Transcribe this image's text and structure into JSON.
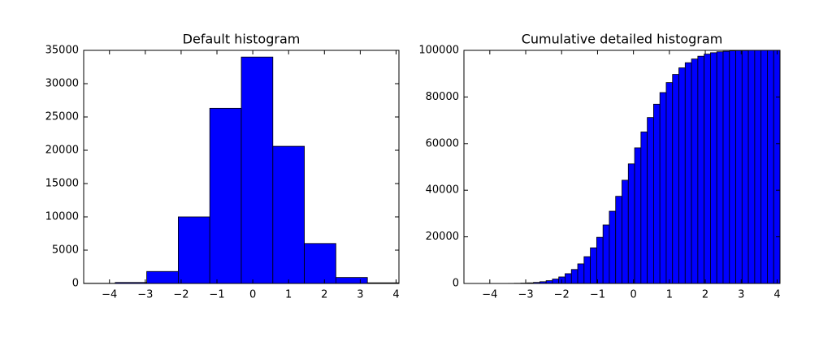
{
  "chart_data": [
    {
      "type": "histogram",
      "title": "Default histogram",
      "bins": [
        -4.72,
        -3.84,
        -2.96,
        -2.08,
        -1.2,
        -0.32,
        0.56,
        1.44,
        2.32,
        3.2,
        4.08
      ],
      "values": [
        30,
        150,
        1800,
        10000,
        26300,
        34000,
        20600,
        6000,
        900,
        100
      ],
      "color": "#0000ff",
      "xlim": [
        -4.72,
        4.08
      ],
      "xticks": [
        {
          "value": -4,
          "label": "−4"
        },
        {
          "value": -3,
          "label": "−3"
        },
        {
          "value": -2,
          "label": "−2"
        },
        {
          "value": -1,
          "label": "−1"
        },
        0,
        1,
        2,
        3,
        4
      ],
      "ylim": [
        0,
        35000
      ],
      "yticks": [
        0,
        5000,
        10000,
        15000,
        20000,
        25000,
        30000,
        35000
      ]
    },
    {
      "type": "histogram",
      "title": "Cumulative detailed histogram",
      "bins": [
        -4.72,
        -4.544,
        -4.368,
        -4.192,
        -4.016,
        -3.84,
        -3.664,
        -3.488,
        -3.312,
        -3.136,
        -2.96,
        -2.784,
        -2.608,
        -2.432,
        -2.256,
        -2.08,
        -1.904,
        -1.728,
        -1.552,
        -1.376,
        -1.2,
        -1.024,
        -0.848,
        -0.672,
        -0.496,
        -0.32,
        -0.144,
        0.032,
        0.208,
        0.384,
        0.56,
        0.736,
        0.912,
        1.088,
        1.264,
        1.44,
        1.616,
        1.792,
        1.968,
        2.144,
        2.32,
        2.496,
        2.672,
        2.848,
        3.024,
        3.2,
        3.376,
        3.552,
        3.728,
        3.904,
        4.08
      ],
      "values": [
        0,
        1,
        1,
        3,
        6,
        12,
        24,
        46,
        86,
        154,
        268,
        455,
        750,
        1200,
        1900,
        2800,
        4200,
        6000,
        8400,
        11500,
        15300,
        19800,
        25100,
        31000,
        37400,
        44300,
        51300,
        58200,
        65000,
        71200,
        76900,
        81900,
        86200,
        89700,
        92500,
        94700,
        96300,
        97500,
        98400,
        99000,
        99400,
        99600,
        99800,
        99900,
        99900,
        100000,
        100000,
        100000,
        100000,
        100000
      ],
      "color": "#0000ff",
      "xlim": [
        -4.72,
        4.08
      ],
      "xticks": [
        {
          "value": -4,
          "label": "−4"
        },
        {
          "value": -3,
          "label": "−3"
        },
        {
          "value": -2,
          "label": "−2"
        },
        {
          "value": -1,
          "label": "−1"
        },
        0,
        1,
        2,
        3,
        4
      ],
      "ylim": [
        0,
        100000
      ],
      "yticks": [
        0,
        20000,
        40000,
        60000,
        80000,
        100000
      ]
    }
  ]
}
